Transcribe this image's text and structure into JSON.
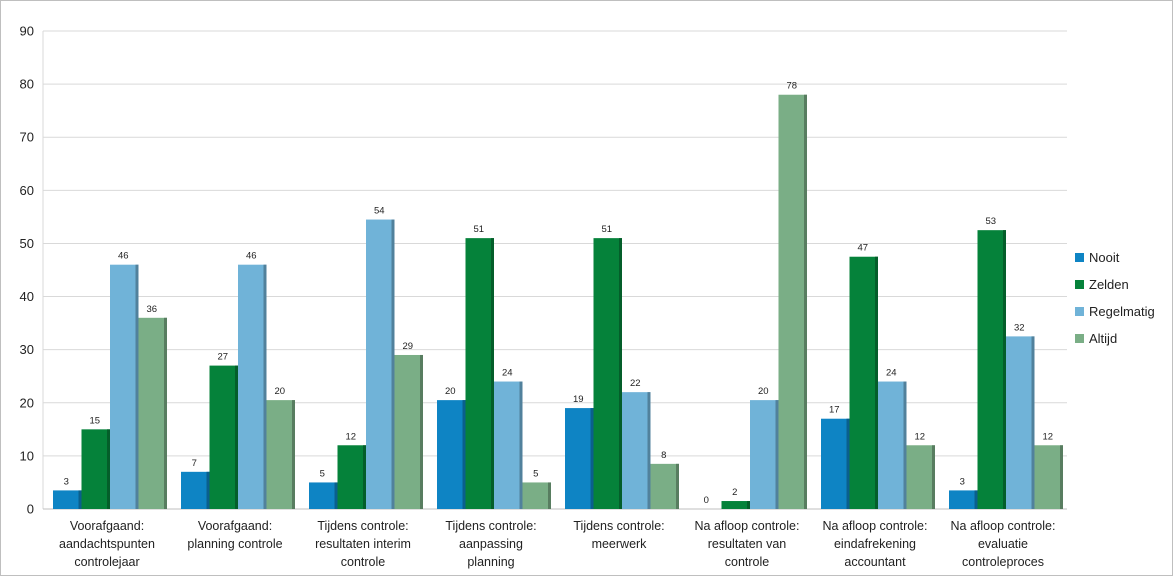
{
  "chart_data": {
    "type": "bar",
    "title": "",
    "xlabel": "",
    "ylabel": "",
    "ylim": [
      0,
      90
    ],
    "yticks": [
      0,
      10,
      20,
      30,
      40,
      50,
      60,
      70,
      80,
      90
    ],
    "grid": true,
    "legend_position": "right",
    "categories": [
      [
        "Voorafgaand:",
        "aandachtspunten",
        "controlejaar"
      ],
      [
        "Voorafgaand:",
        "planning controle"
      ],
      [
        "Tijdens controle:",
        "resultaten interim",
        "controle"
      ],
      [
        "Tijdens controle:",
        "aanpassing",
        "planning"
      ],
      [
        "Tijdens controle:",
        "meerwerk"
      ],
      [
        "Na afloop controle:",
        "resultaten van",
        "controle"
      ],
      [
        "Na afloop controle:",
        "eindafrekening",
        "accountant"
      ],
      [
        "Na afloop controle:",
        "evaluatie",
        "controleproces"
      ]
    ],
    "series": [
      {
        "name": "Nooit",
        "color": "#0e84c4",
        "values": [
          3.5,
          7,
          5,
          20.5,
          19,
          0,
          17,
          3.5
        ],
        "labels": [
          "3",
          "7",
          "5",
          "20",
          "19",
          "0",
          "17",
          "3"
        ]
      },
      {
        "name": "Zelden",
        "color": "#05823a",
        "values": [
          15,
          27,
          12,
          51,
          51,
          1.5,
          47.5,
          52.5
        ],
        "labels": [
          "15",
          "27",
          "12",
          "51",
          "51",
          "2",
          "47",
          "53"
        ]
      },
      {
        "name": "Regelmatig",
        "color": "#70b3d8",
        "values": [
          46,
          46,
          54.5,
          24,
          22,
          20.5,
          24,
          32.5
        ],
        "labels": [
          "46",
          "46",
          "54",
          "24",
          "22",
          "20",
          "24",
          "32"
        ]
      },
      {
        "name": "Altijd",
        "color": "#7aae86",
        "values": [
          36,
          20.5,
          29,
          5,
          8.5,
          78,
          12,
          12
        ],
        "labels": [
          "36",
          "20",
          "29",
          "5",
          "8",
          "78",
          "12",
          "12"
        ]
      }
    ]
  }
}
